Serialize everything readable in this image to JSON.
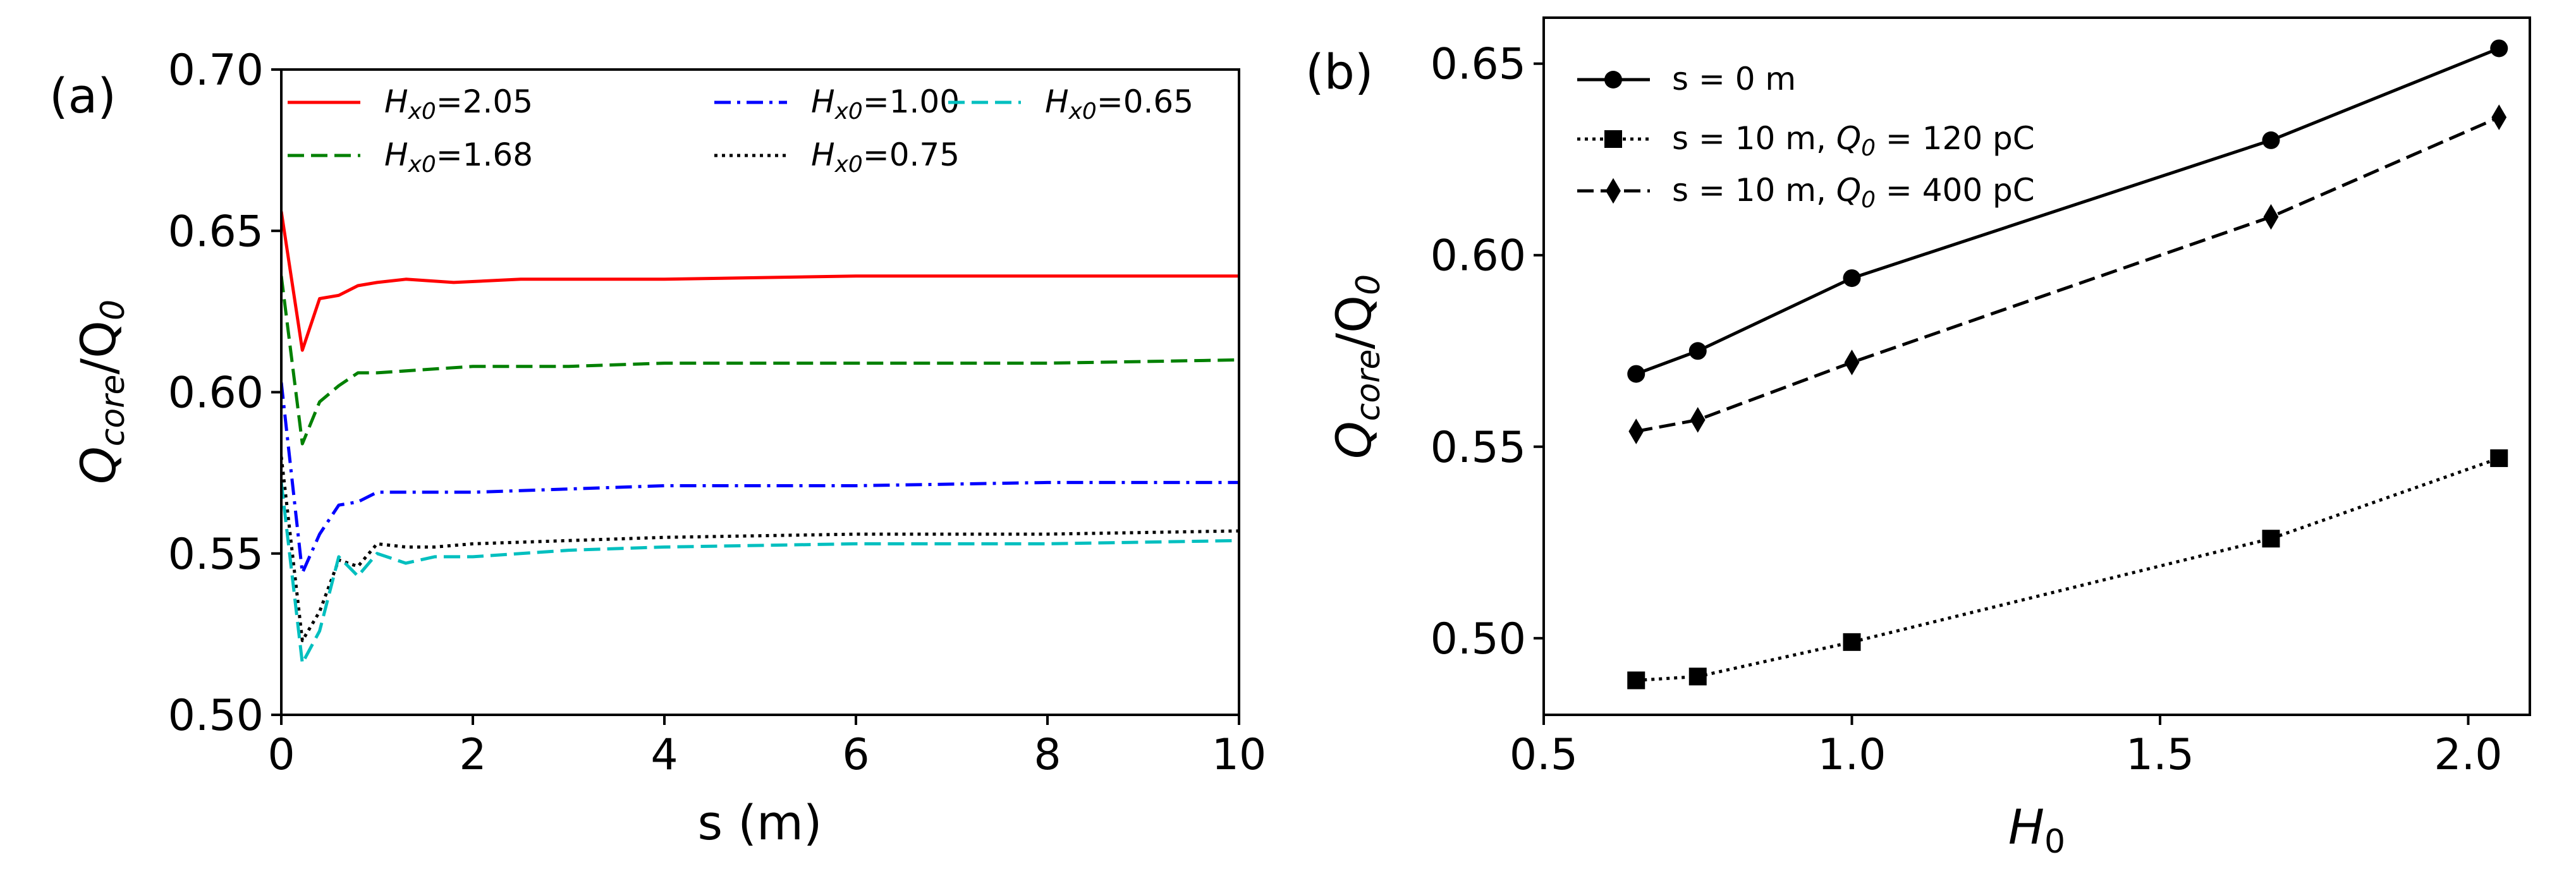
{
  "chart_data": [
    {
      "type": "line",
      "panel_label": "(a)",
      "xlabel": "s (m)",
      "ylabel": {
        "main": "Q",
        "sub": "core",
        "rest": "/Q",
        "sub2": "0"
      },
      "xlim": [
        0,
        10
      ],
      "ylim": [
        0.5,
        0.7
      ],
      "xticks": [
        0,
        2,
        4,
        6,
        8,
        10
      ],
      "xtick_labels": [
        "0",
        "2",
        "4",
        "6",
        "8",
        "10"
      ],
      "yticks": [
        0.5,
        0.55,
        0.6,
        0.65,
        0.7
      ],
      "ytick_labels": [
        "0.50",
        "0.55",
        "0.60",
        "0.65",
        "0.70"
      ],
      "legend_position": "top",
      "series": [
        {
          "name": "H_x0=2.05",
          "label_main": "H",
          "label_sub": "x0",
          "label_rest": "=2.05",
          "color": "#ff0000",
          "style": "solid",
          "x": [
            0,
            0.22,
            0.4,
            0.6,
            0.8,
            1.0,
            1.3,
            1.8,
            2.5,
            4,
            6,
            8,
            10
          ],
          "y": [
            0.656,
            0.613,
            0.629,
            0.63,
            0.633,
            0.634,
            0.635,
            0.634,
            0.635,
            0.635,
            0.636,
            0.636,
            0.636
          ]
        },
        {
          "name": "H_x0=1.68",
          "label_main": "H",
          "label_sub": "x0",
          "label_rest": "=1.68",
          "color": "#008000",
          "style": "dashed",
          "x": [
            0,
            0.22,
            0.4,
            0.6,
            0.8,
            1.0,
            1.5,
            2.0,
            3,
            4,
            6,
            8,
            10
          ],
          "y": [
            0.636,
            0.584,
            0.597,
            0.602,
            0.606,
            0.606,
            0.607,
            0.608,
            0.608,
            0.609,
            0.609,
            0.609,
            0.61
          ]
        },
        {
          "name": "H_x0=1.00",
          "label_main": "H",
          "label_sub": "x0",
          "label_rest": "=1.00",
          "color": "#0000ff",
          "style": "dashdot",
          "x": [
            0,
            0.22,
            0.4,
            0.6,
            0.8,
            1.0,
            1.5,
            2.0,
            3,
            4,
            6,
            8,
            10
          ],
          "y": [
            0.603,
            0.544,
            0.556,
            0.565,
            0.566,
            0.569,
            0.569,
            0.569,
            0.57,
            0.571,
            0.571,
            0.572,
            0.572
          ]
        },
        {
          "name": "H_x0=0.75",
          "label_main": "H",
          "label_sub": "x0",
          "label_rest": "=0.75",
          "color": "#000000",
          "style": "dotted",
          "x": [
            0,
            0.22,
            0.4,
            0.6,
            0.8,
            1.0,
            1.3,
            1.6,
            2.0,
            3,
            4,
            6,
            8,
            10
          ],
          "y": [
            0.58,
            0.523,
            0.532,
            0.548,
            0.546,
            0.553,
            0.552,
            0.552,
            0.553,
            0.554,
            0.555,
            0.556,
            0.556,
            0.557
          ]
        },
        {
          "name": "H_x0=0.65",
          "label_main": "H",
          "label_sub": "x0",
          "label_rest": "=0.65",
          "color": "#00bfbf",
          "style": "dashed",
          "x": [
            0,
            0.22,
            0.4,
            0.6,
            0.8,
            1.0,
            1.3,
            1.6,
            2.0,
            3,
            4,
            6,
            8,
            10
          ],
          "y": [
            0.572,
            0.516,
            0.526,
            0.549,
            0.543,
            0.55,
            0.547,
            0.549,
            0.549,
            0.551,
            0.552,
            0.553,
            0.553,
            0.554
          ]
        }
      ]
    },
    {
      "type": "line",
      "panel_label": "(b)",
      "xlabel": {
        "main": "H",
        "sub": "0"
      },
      "ylabel": {
        "main": "Q",
        "sub": "core",
        "rest": "/Q",
        "sub2": "0"
      },
      "xlim": [
        0.5,
        2.1
      ],
      "ylim": [
        0.48,
        0.662
      ],
      "xticks": [
        0.5,
        1.0,
        1.5,
        2.0
      ],
      "xtick_labels": [
        "0.5",
        "1.0",
        "1.5",
        "2.0"
      ],
      "yticks": [
        0.5,
        0.55,
        0.6,
        0.65
      ],
      "ytick_labels": [
        "0.50",
        "0.55",
        "0.60",
        "0.65"
      ],
      "legend_position": "top-left",
      "series": [
        {
          "name": "s = 0 m",
          "label_pre": "s = 0 m",
          "label_main": "",
          "label_sub": "",
          "label_rest": "",
          "color": "#000000",
          "style": "solid",
          "marker": "circle",
          "x": [
            0.65,
            0.75,
            1.0,
            1.68,
            2.05
          ],
          "y": [
            0.569,
            0.575,
            0.594,
            0.63,
            0.654
          ]
        },
        {
          "name": "s = 10 m, Q_0 = 120 pC",
          "label_pre": "s = 10 m, ",
          "label_main": "Q",
          "label_sub": "0",
          "label_rest": " = 120 pC",
          "color": "#000000",
          "style": "dotted",
          "marker": "square",
          "x": [
            0.65,
            0.75,
            1.0,
            1.68,
            2.05
          ],
          "y": [
            0.489,
            0.49,
            0.499,
            0.526,
            0.547
          ]
        },
        {
          "name": "s = 10 m, Q_0 = 400 pC",
          "label_pre": "s = 10 m, ",
          "label_main": "Q",
          "label_sub": "0",
          "label_rest": " = 400 pC",
          "color": "#000000",
          "style": "dashed",
          "marker": "diamond",
          "x": [
            0.65,
            0.75,
            1.0,
            1.68,
            2.05
          ],
          "y": [
            0.554,
            0.557,
            0.572,
            0.61,
            0.636
          ]
        }
      ]
    }
  ]
}
